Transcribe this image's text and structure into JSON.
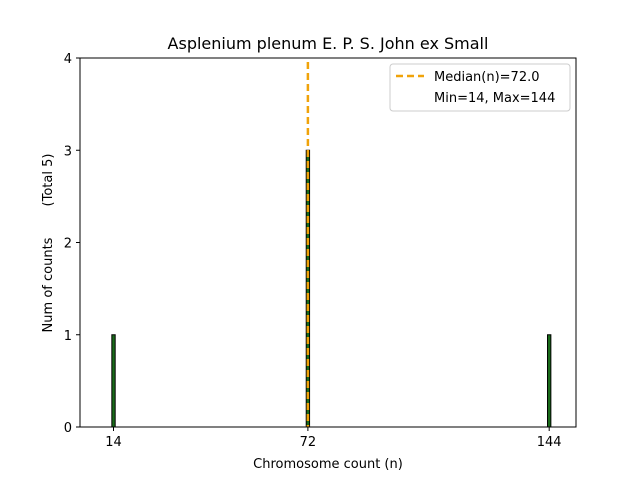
{
  "chart_data": {
    "type": "bar",
    "title": "Asplenium plenum E. P. S. John ex Small",
    "xlabel": "Chromosome count (n)",
    "ylabel": "Num of counts",
    "ylabel_note": "(Total 5)",
    "xlim": [
      4,
      152
    ],
    "ylim": [
      0,
      4
    ],
    "x_ticks": [
      14,
      72,
      144
    ],
    "y_ticks": [
      0,
      1,
      2,
      3,
      4
    ],
    "bars": [
      {
        "x": 14,
        "count": 1
      },
      {
        "x": 72,
        "count": 3
      },
      {
        "x": 144,
        "count": 1
      }
    ],
    "bar_width": 1,
    "median": 72.0,
    "min": 14,
    "max": 144,
    "legend": {
      "position": "top-right",
      "median_label": "Median(n)=72.0",
      "range_label": "Min=14, Max=144"
    },
    "colors": {
      "bar_fill": "#1a6b1a",
      "bar_edge": "#000000",
      "median_line": "#f0a30a"
    }
  }
}
